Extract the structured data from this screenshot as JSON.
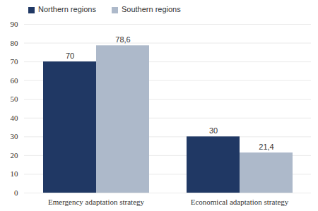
{
  "chart_data": {
    "type": "bar",
    "categories": [
      "Emergency adaptation strategy",
      "Economical adaptation strategy"
    ],
    "series": [
      {
        "name": "Northern regions",
        "color": "#203864",
        "values": [
          70,
          30
        ],
        "value_labels": [
          "70",
          "30"
        ]
      },
      {
        "name": "Southern regions",
        "color": "#adb9ca",
        "values": [
          78.6,
          21.4
        ],
        "value_labels": [
          "78,6",
          "21,4"
        ]
      }
    ],
    "ylim": [
      0,
      90
    ],
    "yticks": [
      0,
      10,
      20,
      30,
      40,
      50,
      60,
      70,
      80,
      90
    ],
    "grid": true,
    "data_labels": true,
    "legend": "top"
  }
}
